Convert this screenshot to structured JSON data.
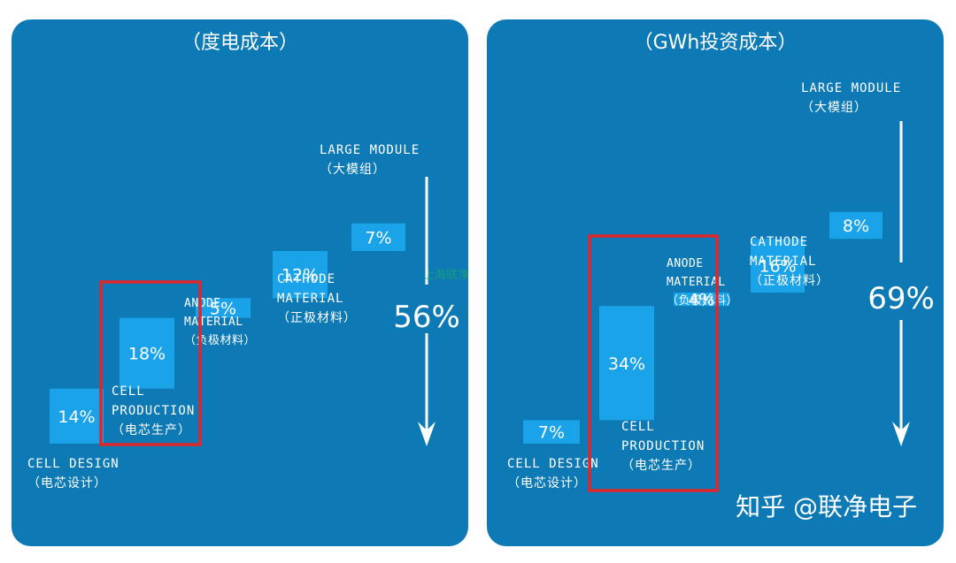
{
  "chart_data": [
    {
      "type": "waterfall",
      "title": "（度电成本）",
      "steps": [
        {
          "lines": [
            "CELL DESIGN",
            "（电芯设计）"
          ],
          "value": 14,
          "label": "14%"
        },
        {
          "lines": [
            "CELL",
            "PRODUCTION",
            "（电芯生产）"
          ],
          "value": 18,
          "label": "18%",
          "highlighted": true
        },
        {
          "lines": [
            "ANODE",
            "MATERIAL",
            "（负极材料）"
          ],
          "value": 5,
          "label": "5%"
        },
        {
          "lines": [
            "CATHODE",
            "MATERIAL",
            "（正极材料）"
          ],
          "value": 12,
          "label": "12%"
        },
        {
          "lines": [
            "LARGE MODULE",
            "（大模组）"
          ],
          "value": 7,
          "label": "7%"
        }
      ],
      "total_label": "56%",
      "colors": {
        "panel": "#0d7ab5",
        "bar": "#1aa3e8",
        "highlight": "#e0262b"
      }
    },
    {
      "type": "waterfall",
      "title": "（GWh投资成本）",
      "steps": [
        {
          "lines": [
            "CELL DESIGN",
            "（电芯设计）"
          ],
          "value": 7,
          "label": "7%"
        },
        {
          "lines": [
            "CELL",
            "PRODUCTION",
            "（电芯生产）"
          ],
          "value": 34,
          "label": "34%",
          "highlighted": true
        },
        {
          "lines": [
            "ANODE",
            "MATERIAL",
            "（负极材料）"
          ],
          "value": 4,
          "label": "4%"
        },
        {
          "lines": [
            "CATHODE",
            "MATERIAL",
            "（正极材料）"
          ],
          "value": 16,
          "label": "16%"
        },
        {
          "lines": [
            "LARGE MODULE",
            "（大模组）"
          ],
          "value": 8,
          "label": "8%"
        }
      ],
      "total_label": "69%",
      "colors": {
        "panel": "#0d7ab5",
        "bar": "#1aa3e8",
        "highlight": "#e0262b"
      }
    }
  ],
  "watermark": "知乎 @联净电子",
  "center_watermark": "上海联净"
}
